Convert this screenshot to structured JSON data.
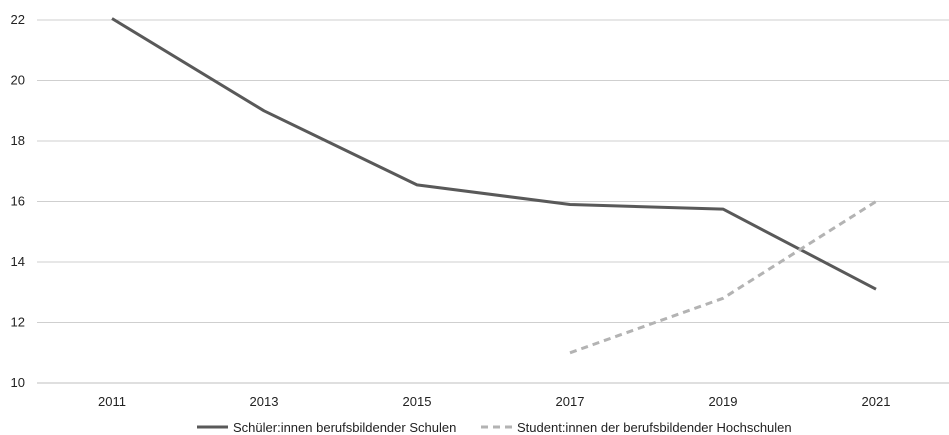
{
  "chart_data": {
    "type": "line",
    "x": [
      "2011",
      "2013",
      "2015",
      "2017",
      "2019",
      "2021"
    ],
    "ylim": [
      10,
      22
    ],
    "yticks": [
      "10",
      "12",
      "14",
      "16",
      "18",
      "20",
      "22"
    ],
    "grid": true,
    "legend_position": "bottom",
    "series": [
      {
        "name": "Schüler:innen berufsbildender Schulen",
        "values": [
          22.05,
          19.0,
          16.55,
          15.9,
          15.75,
          13.1
        ],
        "color": "#595959",
        "style": "solid"
      },
      {
        "name": "Student:innen der berufsbildender Hochschulen",
        "values": [
          null,
          null,
          null,
          11.0,
          12.8,
          16.0
        ],
        "color": "#b3b3b3",
        "style": "dashed"
      }
    ]
  }
}
